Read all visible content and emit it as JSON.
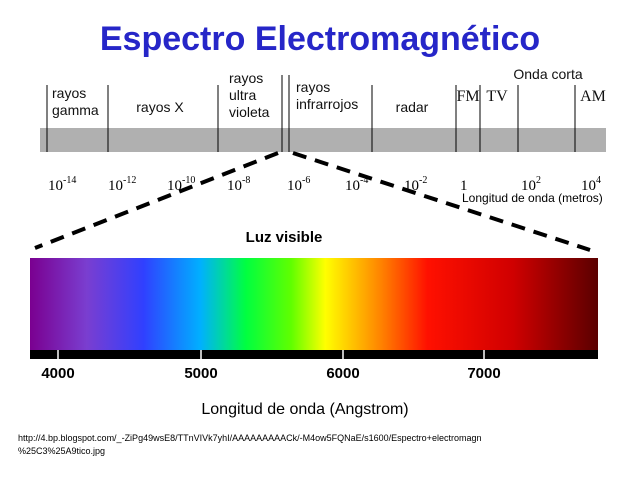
{
  "title": "Espectro Electromagnético",
  "bands": [
    {
      "lines": [
        "rayos",
        "gamma"
      ]
    },
    {
      "lines": [
        "rayos X"
      ]
    },
    {
      "lines": [
        "rayos",
        "ultra",
        "violeta"
      ]
    },
    {
      "lines": [
        "rayos",
        "infrarrojos"
      ]
    },
    {
      "lines": [
        "radar"
      ]
    },
    {
      "lines": [
        "FM"
      ]
    },
    {
      "lines": [
        "TV"
      ]
    },
    {
      "lines": [
        "Onda corta"
      ]
    },
    {
      "lines": [
        "AM"
      ]
    }
  ],
  "wavelength_ticks": [
    {
      "base": "10",
      "exp": "-14"
    },
    {
      "base": "10",
      "exp": "-12"
    },
    {
      "base": "10",
      "exp": "-10"
    },
    {
      "base": "10",
      "exp": "-8"
    },
    {
      "base": "10",
      "exp": "-6"
    },
    {
      "base": "10",
      "exp": "-4"
    },
    {
      "base": "10",
      "exp": "-2"
    },
    {
      "base": "1"
    },
    {
      "base": "10",
      "exp": "2"
    },
    {
      "base": "10",
      "exp": "4"
    }
  ],
  "wavelength_axis_label": "Longitud de onda (metros)",
  "visible_label": "Luz visible",
  "angstrom_ticks": [
    "4000",
    "5000",
    "6000",
    "7000"
  ],
  "angstrom_axis_label": "Longitud de onda (Angstrom)",
  "source": [
    "http://4.bp.blogspot.com/_-ZiPg49wsE8/TTnVIVk7yhI/AAAAAAAAACk/-M4ow5FQNaE/s1600/Espectro+electromagn",
    "%25C3%25A9tico.jpg"
  ]
}
